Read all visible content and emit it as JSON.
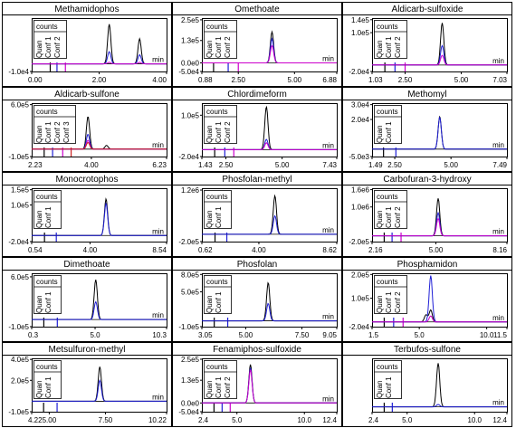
{
  "chart_data": [
    {
      "type": "line",
      "title": "Methamidophos",
      "xlim": [
        0,
        4
      ],
      "x_tick_labels": [
        "0.00",
        "2.00",
        "4.00"
      ],
      "x_ticks": [
        0,
        2,
        4
      ],
      "y_tick_labels": [
        "-1.0e4"
      ],
      "y_ticks": [
        -10000
      ],
      "ylim": [
        -10000,
        60000
      ],
      "unit": "min",
      "counts_label": "counts",
      "legend": [
        "Quan",
        "Conf 1",
        "Conf 2"
      ],
      "markers_x": [
        0.55,
        0.75,
        1.0
      ],
      "peaks": [
        {
          "name": "Quan",
          "color": "#000000",
          "values": [
            [
              2.3,
              52000
            ],
            [
              3.2,
              33000
            ]
          ]
        },
        {
          "name": "Conf 1",
          "color": "#1f1fd6",
          "values": [
            [
              2.3,
              16000
            ],
            [
              3.2,
              12000
            ]
          ]
        },
        {
          "name": "Conf 2",
          "color": "#cc00cc",
          "values": [
            [
              2.3,
              2000
            ],
            [
              3.2,
              2000
            ]
          ]
        }
      ]
    },
    {
      "type": "line",
      "title": "Omethoate",
      "xlim": [
        0.88,
        6.88
      ],
      "x_tick_labels": [
        "0.88",
        "2.50",
        "5.00",
        "6.88"
      ],
      "x_ticks": [
        0.88,
        2.5,
        5.0,
        6.88
      ],
      "y_tick_labels": [
        "2.5e5",
        "1.3e5",
        "0.0e0",
        "-5.0e4"
      ],
      "y_ticks": [
        250000,
        130000,
        0,
        -50000
      ],
      "ylim": [
        -50000,
        260000
      ],
      "unit": "min",
      "counts_label": "counts",
      "legend": [
        "Quan",
        "Conf 1",
        "Conf 2"
      ],
      "markers_x": [
        1.4,
        2.05,
        2.5
      ],
      "peaks": [
        {
          "name": "Quan",
          "color": "#000000",
          "values": [
            [
              4.0,
              180000
            ]
          ]
        },
        {
          "name": "Conf 1",
          "color": "#1f1fd6",
          "values": [
            [
              4.0,
              140000
            ]
          ]
        },
        {
          "name": "Conf 2",
          "color": "#cc00cc",
          "values": [
            [
              4.0,
              100000
            ]
          ]
        }
      ]
    },
    {
      "type": "line",
      "title": "Aldicarb-sulfoxide",
      "xlim": [
        1.03,
        7.03
      ],
      "x_tick_labels": [
        "1.03",
        "2.50",
        "5.00",
        "7.03"
      ],
      "x_ticks": [
        1.03,
        2.5,
        5.0,
        7.03
      ],
      "y_tick_labels": [
        "1.4e5",
        "1.0e5",
        "-2.0e4"
      ],
      "y_ticks": [
        140000,
        100000,
        -20000
      ],
      "ylim": [
        -20000,
        145000
      ],
      "unit": "min",
      "counts_label": "counts",
      "legend": [
        "Quan",
        "Conf 1",
        "Conf 2"
      ],
      "markers_x": [
        1.6,
        2.05,
        2.5
      ],
      "peaks": [
        {
          "name": "Quan",
          "color": "#000000",
          "values": [
            [
              4.15,
              130000
            ]
          ]
        },
        {
          "name": "Conf 1",
          "color": "#1f1fd6",
          "values": [
            [
              4.15,
              60000
            ]
          ]
        },
        {
          "name": "Conf 2",
          "color": "#cc00cc",
          "values": [
            [
              4.15,
              30000
            ]
          ]
        }
      ]
    },
    {
      "type": "line",
      "title": "Aldicarb-sulfone",
      "xlim": [
        2.23,
        6.23
      ],
      "x_tick_labels": [
        "2.23",
        "4.00",
        "6.23"
      ],
      "x_ticks": [
        2.23,
        4.0,
        6.23
      ],
      "y_tick_labels": [
        "6.0e5",
        "-1.0e5"
      ],
      "y_ticks": [
        600000,
        -100000
      ],
      "ylim": [
        -100000,
        620000
      ],
      "unit": "min",
      "counts_label": "counts",
      "legend": [
        "Quan",
        "Conf 1",
        "Conf 2",
        "Conf 3"
      ],
      "markers_x": [
        2.6,
        2.85,
        3.15,
        3.4
      ],
      "peaks": [
        {
          "name": "Quan",
          "color": "#000000",
          "values": [
            [
              3.9,
              440000
            ],
            [
              4.45,
              50000
            ]
          ]
        },
        {
          "name": "Conf 1",
          "color": "#1f1fd6",
          "values": [
            [
              3.9,
              200000
            ]
          ]
        },
        {
          "name": "Conf 2",
          "color": "#cc00cc",
          "values": [
            [
              3.9,
              120000
            ]
          ]
        },
        {
          "name": "Conf 3",
          "color": "#cc2222",
          "values": [
            [
              3.9,
              90000
            ]
          ]
        }
      ]
    },
    {
      "type": "line",
      "title": "Chlordimeform",
      "xlim": [
        1.43,
        7.43
      ],
      "x_tick_labels": [
        "1.43",
        "2.50",
        "5.00",
        "7.43"
      ],
      "x_ticks": [
        1.43,
        2.5,
        5.0,
        7.43
      ],
      "y_tick_labels": [
        "1.0e5",
        "-2.0e4"
      ],
      "y_ticks": [
        100000,
        -20000
      ],
      "ylim": [
        -20000,
        135000
      ],
      "unit": "min",
      "counts_label": "counts",
      "legend": [
        "Quan",
        "Conf 1",
        "Conf 2"
      ],
      "markers_x": [
        2.0,
        2.45,
        2.85
      ],
      "peaks": [
        {
          "name": "Quan",
          "color": "#000000",
          "values": [
            [
              4.3,
              125000
            ]
          ]
        },
        {
          "name": "Conf 1",
          "color": "#1f1fd6",
          "values": [
            [
              4.3,
              30000
            ]
          ]
        },
        {
          "name": "Conf 2",
          "color": "#cc00cc",
          "values": [
            [
              4.3,
              20000
            ]
          ]
        }
      ]
    },
    {
      "type": "line",
      "title": "Methomyl",
      "xlim": [
        1.49,
        7.49
      ],
      "x_tick_labels": [
        "1.49",
        "2.50",
        "5.00",
        "7.49"
      ],
      "x_ticks": [
        1.49,
        2.5,
        5.0,
        7.49
      ],
      "y_tick_labels": [
        "3.0e4",
        "2.0e4",
        "-5.0e3"
      ],
      "y_ticks": [
        30000,
        20000,
        -5000
      ],
      "ylim": [
        -5000,
        31000
      ],
      "unit": "min",
      "counts_label": "counts",
      "legend": [
        "Quan",
        "Conf 1"
      ],
      "markers_x": [
        2.0,
        2.55
      ],
      "peaks": [
        {
          "name": "Quan",
          "color": "#000000",
          "values": [
            [
              4.5,
              22000
            ]
          ]
        },
        {
          "name": "Conf 1",
          "color": "#1f1fd6",
          "values": [
            [
              4.5,
              21500
            ]
          ]
        }
      ]
    },
    {
      "type": "line",
      "title": "Monocrotophos",
      "xlim": [
        0.54,
        8.54
      ],
      "x_tick_labels": [
        "0.54",
        "4.00",
        "8.54"
      ],
      "x_ticks": [
        0.54,
        4.0,
        8.54
      ],
      "y_tick_labels": [
        "1.5e5",
        "1.0e5",
        "-2.0e4"
      ],
      "y_ticks": [
        150000,
        100000,
        -20000
      ],
      "ylim": [
        -20000,
        155000
      ],
      "unit": "min",
      "counts_label": "counts",
      "legend": [
        "Quan",
        "Conf 1"
      ],
      "markers_x": [
        1.3,
        2.0
      ],
      "peaks": [
        {
          "name": "Quan",
          "color": "#000000",
          "values": [
            [
              4.95,
              120000
            ]
          ]
        },
        {
          "name": "Conf 1",
          "color": "#1f1fd6",
          "values": [
            [
              4.95,
              105000
            ]
          ]
        }
      ]
    },
    {
      "type": "line",
      "title": "Phosfolan-methyl",
      "xlim": [
        0.62,
        8.62
      ],
      "x_tick_labels": [
        "0.62",
        "4.00",
        "8.62"
      ],
      "x_ticks": [
        0.62,
        4.0,
        8.62
      ],
      "y_tick_labels": [
        "1.2e6",
        "-2.0e5"
      ],
      "y_ticks": [
        1200000,
        -200000
      ],
      "ylim": [
        -200000,
        1250000
      ],
      "unit": "min",
      "counts_label": "counts",
      "legend": [
        "Quan",
        "Conf 1"
      ],
      "markers_x": [
        1.4,
        2.1
      ],
      "peaks": [
        {
          "name": "Quan",
          "color": "#000000",
          "values": [
            [
              4.95,
              1050000
            ]
          ]
        },
        {
          "name": "Conf 1",
          "color": "#1f1fd6",
          "values": [
            [
              4.95,
              500000
            ]
          ]
        }
      ]
    },
    {
      "type": "line",
      "title": "Carbofuran-3-hydroxy",
      "xlim": [
        2.16,
        8.16
      ],
      "x_tick_labels": [
        "2.16",
        "5.00",
        "8.16"
      ],
      "x_ticks": [
        2.16,
        5.0,
        8.16
      ],
      "y_tick_labels": [
        "1.6e6",
        "1.0e6",
        "-2.0e5"
      ],
      "y_ticks": [
        1600000,
        1000000,
        -200000
      ],
      "ylim": [
        -200000,
        1650000
      ],
      "unit": "min",
      "counts_label": "counts",
      "legend": [
        "Quan",
        "Conf 1",
        "Conf 2"
      ],
      "markers_x": [
        2.7,
        3.05,
        3.45
      ],
      "peaks": [
        {
          "name": "Quan",
          "color": "#000000",
          "values": [
            [
              5.1,
              1300000
            ]
          ]
        },
        {
          "name": "Conf 1",
          "color": "#1f1fd6",
          "values": [
            [
              5.1,
              800000
            ]
          ]
        },
        {
          "name": "Conf 2",
          "color": "#cc00cc",
          "values": [
            [
              5.1,
              600000
            ]
          ]
        }
      ]
    },
    {
      "type": "line",
      "title": "Dimethoate",
      "xlim": [
        0.3,
        10.3
      ],
      "x_tick_labels": [
        "0.3",
        "5.0",
        "10.3"
      ],
      "x_ticks": [
        0.3,
        5.0,
        10.3
      ],
      "y_tick_labels": [
        "6.0e5",
        "-1.0e5"
      ],
      "y_ticks": [
        600000,
        -100000
      ],
      "ylim": [
        -100000,
        650000
      ],
      "unit": "min",
      "counts_label": "counts",
      "legend": [
        "Quan",
        "Conf 1"
      ],
      "markers_x": [
        1.2,
        2.2
      ],
      "peaks": [
        {
          "name": "Quan",
          "color": "#000000",
          "values": [
            [
              5.05,
              560000
            ]
          ]
        },
        {
          "name": "Conf 1",
          "color": "#1f1fd6",
          "values": [
            [
              5.05,
              250000
            ]
          ]
        }
      ]
    },
    {
      "type": "line",
      "title": "Phosfolan",
      "xlim": [
        3.05,
        9.05
      ],
      "x_tick_labels": [
        "3.05",
        "5.00",
        "7.50",
        "9.05"
      ],
      "x_ticks": [
        3.05,
        5.0,
        7.5,
        9.05
      ],
      "y_tick_labels": [
        "8.0e5",
        "5.0e5",
        "-1.0e5"
      ],
      "y_ticks": [
        800000,
        500000,
        -100000
      ],
      "ylim": [
        -100000,
        820000
      ],
      "unit": "min",
      "counts_label": "counts",
      "legend": [
        "Quan",
        "Conf 1"
      ],
      "markers_x": [
        3.6,
        4.2
      ],
      "peaks": [
        {
          "name": "Quan",
          "color": "#000000",
          "values": [
            [
              6.0,
              660000
            ]
          ]
        },
        {
          "name": "Conf 1",
          "color": "#1f1fd6",
          "values": [
            [
              6.0,
              300000
            ]
          ]
        }
      ]
    },
    {
      "type": "line",
      "title": "Phosphamidon",
      "xlim": [
        1.5,
        11.5
      ],
      "x_tick_labels": [
        "1.5",
        "5.0",
        "10.0",
        "11.5"
      ],
      "x_ticks": [
        1.5,
        5.0,
        10.0,
        11.5
      ],
      "y_tick_labels": [
        "2.0e5",
        "1.0e5",
        "-2.0e4"
      ],
      "y_ticks": [
        200000,
        100000,
        -20000
      ],
      "ylim": [
        -20000,
        205000
      ],
      "unit": "min",
      "counts_label": "counts",
      "legend": [
        "Quan",
        "Conf 1",
        "Conf 2"
      ],
      "markers_x": [
        2.4,
        3.1,
        3.8
      ],
      "peaks": [
        {
          "name": "Quan",
          "color": "#000000",
          "values": [
            [
              5.5,
              30000
            ],
            [
              5.85,
              50000
            ]
          ]
        },
        {
          "name": "Conf 1",
          "color": "#1f1fd6",
          "values": [
            [
              5.85,
              195000
            ]
          ]
        },
        {
          "name": "Conf 2",
          "color": "#cc00cc",
          "values": [
            [
              5.85,
              25000
            ]
          ]
        }
      ]
    },
    {
      "type": "line",
      "title": "Metsulfuron-methyl",
      "xlim": [
        4.22,
        10.22
      ],
      "x_tick_labels": [
        "4.22",
        "5.00",
        "7.50",
        "10.22"
      ],
      "x_ticks": [
        4.22,
        5.0,
        7.5,
        10.22
      ],
      "y_tick_labels": [
        "4.0e5",
        "2.0e5",
        "-1.0e5"
      ],
      "y_ticks": [
        400000,
        200000,
        -100000
      ],
      "ylim": [
        -100000,
        410000
      ],
      "unit": "min",
      "counts_label": "counts",
      "legend": [
        "Quan",
        "Conf 1"
      ],
      "markers_x": [
        4.75,
        5.35
      ],
      "peaks": [
        {
          "name": "Quan",
          "color": "#000000",
          "values": [
            [
              7.25,
              330000
            ]
          ]
        },
        {
          "name": "Conf 1",
          "color": "#1f1fd6",
          "values": [
            [
              7.25,
              200000
            ]
          ]
        }
      ]
    },
    {
      "type": "line",
      "title": "Fenamiphos-sulfoxide",
      "xlim": [
        2.4,
        12.4
      ],
      "x_tick_labels": [
        "2.4",
        "5.0",
        "10.0",
        "12.4"
      ],
      "x_ticks": [
        2.4,
        5.0,
        10.0,
        12.4
      ],
      "y_tick_labels": [
        "2.5e5",
        "1.3e5",
        "0.0e0",
        "-5.0e4"
      ],
      "y_ticks": [
        250000,
        130000,
        0,
        -50000
      ],
      "ylim": [
        -50000,
        255000
      ],
      "unit": "min",
      "counts_label": "counts",
      "legend": [
        "Quan",
        "Conf 1",
        "Conf 2"
      ],
      "markers_x": [
        3.3,
        3.9,
        4.5
      ],
      "peaks": [
        {
          "name": "Quan",
          "color": "#000000",
          "values": [
            [
              6.0,
              220000
            ]
          ]
        },
        {
          "name": "Conf 1",
          "color": "#1f1fd6",
          "values": [
            [
              6.0,
              200000
            ]
          ]
        },
        {
          "name": "Conf 2",
          "color": "#cc00cc",
          "values": [
            [
              6.0,
              190000
            ]
          ]
        }
      ]
    },
    {
      "type": "line",
      "title": "Terbufos-sulfone",
      "xlim": [
        2.4,
        12.4
      ],
      "x_tick_labels": [
        "2.4",
        "5.0",
        "10.0",
        "12.4"
      ],
      "x_ticks": [
        2.4,
        5.0,
        10.0,
        12.4
      ],
      "y_tick_labels": [],
      "y_ticks": [],
      "ylim": [
        -20000,
        200000
      ],
      "unit": "min",
      "counts_label": "counts",
      "legend": [
        "Quan",
        "Conf 1"
      ],
      "markers_x": [
        3.3,
        3.9
      ],
      "peaks": [
        {
          "name": "Quan",
          "color": "#000000",
          "values": [
            [
              7.3,
              180000
            ]
          ]
        },
        {
          "name": "Conf 1",
          "color": "#1f1fd6",
          "values": [
            [
              7.3,
              10000
            ]
          ]
        }
      ]
    }
  ]
}
